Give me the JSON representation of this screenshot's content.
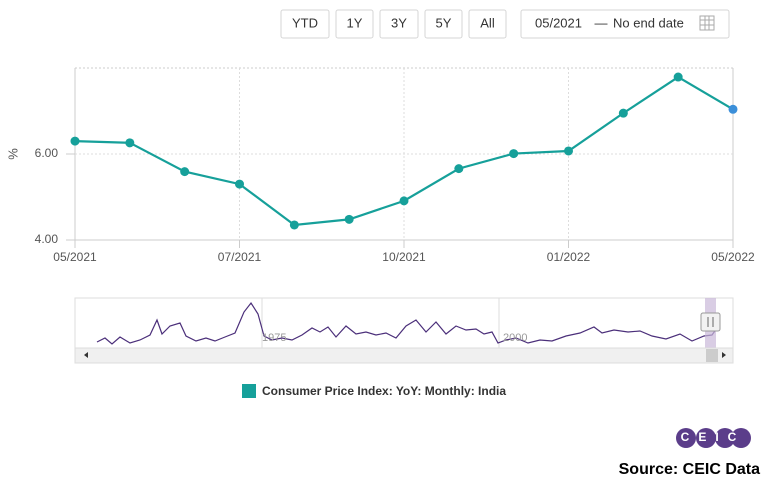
{
  "controls": {
    "range_buttons": [
      "YTD",
      "1Y",
      "3Y",
      "5Y",
      "All"
    ],
    "date_start": "05/2021",
    "separator": "—",
    "date_end": "No end date"
  },
  "chart_data": {
    "type": "line",
    "ylabel": "%",
    "categories": [
      "05/2021",
      null,
      null,
      "07/2021",
      null,
      null,
      "10/2021",
      null,
      null,
      "01/2022",
      null,
      null,
      "05/2022"
    ],
    "series": [
      {
        "name": "Consumer Price Index: YoY: Monthly: India",
        "color": "#16a09a",
        "last_point_color": "#3b8fd9",
        "values": [
          6.3,
          6.26,
          5.59,
          5.3,
          4.35,
          4.48,
          4.91,
          5.66,
          6.01,
          6.07,
          6.95,
          7.79,
          7.04
        ]
      }
    ],
    "ylim": [
      4,
      8
    ],
    "yticks": [
      {
        "value": 4,
        "label": "4.00"
      },
      {
        "value": 6,
        "label": "6.00"
      }
    ],
    "grid": true,
    "legend": "bottom"
  },
  "navigator": {
    "labels": [
      "1975",
      "2000"
    ]
  },
  "logo": "CEIC",
  "source": "Source: CEIC Data"
}
